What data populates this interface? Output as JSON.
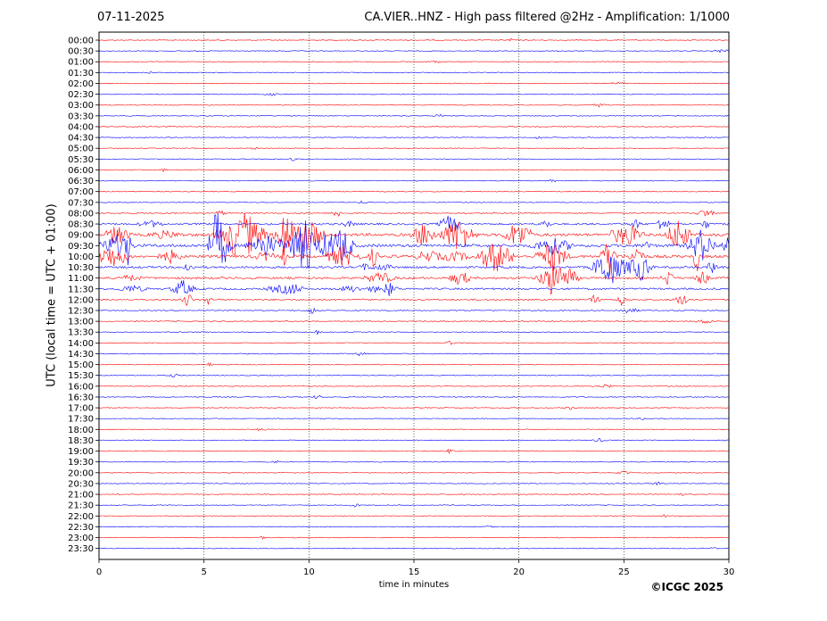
{
  "header": {
    "date": "07-11-2025",
    "title": "CA.VIER..HNZ - High pass filtered @2Hz - Amplification: 1/1000"
  },
  "footer": {
    "copyright": "©ICGC 2025"
  },
  "chart_data": {
    "type": "line",
    "title": "CA.VIER..HNZ - High pass filtered @2Hz - Amplification: 1/1000",
    "xlabel": "time in minutes",
    "ylabel": "UTC (local time = UTC + 01:00)",
    "xlim": [
      0,
      30
    ],
    "xticks": [
      0,
      5,
      10,
      15,
      20,
      25,
      30
    ],
    "vertical_gridlines_at": [
      5,
      10,
      15,
      20,
      25
    ],
    "row_labels": [
      "00:00",
      "00:30",
      "01:00",
      "01:30",
      "02:00",
      "02:30",
      "03:00",
      "03:30",
      "04:00",
      "04:30",
      "05:00",
      "05:30",
      "06:00",
      "06:30",
      "07:00",
      "07:30",
      "08:00",
      "08:30",
      "09:00",
      "09:30",
      "10:00",
      "10:30",
      "11:00",
      "11:30",
      "12:00",
      "12:30",
      "13:00",
      "13:30",
      "14:00",
      "14:30",
      "15:00",
      "15:30",
      "16:00",
      "16:30",
      "17:00",
      "17:30",
      "18:00",
      "18:30",
      "19:00",
      "19:30",
      "20:00",
      "20:30",
      "21:00",
      "21:30",
      "22:00",
      "22:30",
      "23:00",
      "23:30"
    ],
    "row_colors": [
      "#ff0000",
      "#0000ff"
    ],
    "activity_level": [
      0.02,
      0.02,
      0.02,
      0.02,
      0.03,
      0.02,
      0.02,
      0.02,
      0.02,
      0.02,
      0.02,
      0.03,
      0.02,
      0.02,
      0.05,
      0.04,
      0.2,
      0.5,
      0.9,
      1.0,
      0.9,
      0.6,
      0.6,
      0.5,
      0.35,
      0.15,
      0.1,
      0.06,
      0.05,
      0.08,
      0.05,
      0.04,
      0.03,
      0.04,
      0.03,
      0.03,
      0.03,
      0.03,
      0.03,
      0.02,
      0.03,
      0.02,
      0.02,
      0.03,
      0.02,
      0.02,
      0.02,
      0.02
    ]
  }
}
